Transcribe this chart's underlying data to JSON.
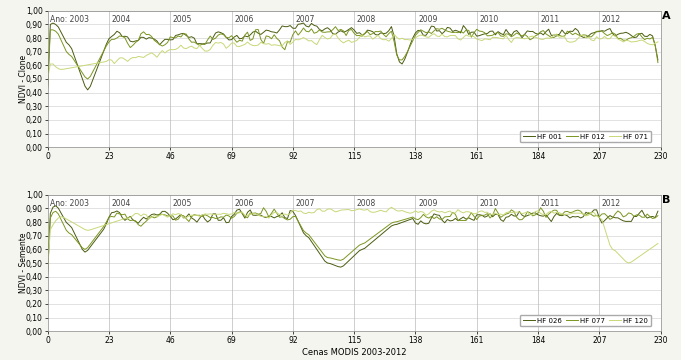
{
  "title_A": "A",
  "title_B": "B",
  "anno_A": "Ano: 2003",
  "xlabel": "Cenas MODIS 2003-2012",
  "ylabel_A": "NDVI - Clone",
  "ylabel_B": "NDVI - Semente",
  "xlim": [
    0,
    230
  ],
  "ylim": [
    0.0,
    1.0
  ],
  "xticks": [
    0,
    23,
    46,
    69,
    92,
    115,
    138,
    161,
    184,
    207,
    230
  ],
  "yticks": [
    0.0,
    0.1,
    0.2,
    0.3,
    0.4,
    0.5,
    0.6,
    0.7,
    0.8,
    0.9,
    1.0
  ],
  "year_labels": [
    "Ano: 2003",
    "2004",
    "2005",
    "2006",
    "2007",
    "2008",
    "2009",
    "2010",
    "2011",
    "2012"
  ],
  "year_x": [
    1,
    24,
    47,
    70,
    93,
    116,
    139,
    162,
    185,
    208
  ],
  "year_dividers": [
    23,
    46,
    69,
    92,
    115,
    138,
    161,
    184,
    207
  ],
  "legend_A": [
    "HF 001",
    "HF 012",
    "HF 071"
  ],
  "legend_B": [
    "HF 026",
    "HF 077",
    "HF 120"
  ],
  "color_1": "#4a5c10",
  "color_2": "#7a9620",
  "color_3": "#c8d878",
  "bg_color": "#f5f5f0",
  "plot_bg": "#ffffff",
  "grid_color": "#cccccc",
  "year_div_color": "#bbbbbb",
  "linewidth": 0.7,
  "fontsize_ticks": 5.5,
  "fontsize_ylabel": 5.5,
  "fontsize_xlabel": 6.0,
  "fontsize_year": 5.5,
  "fontsize_legend": 5.0,
  "fontsize_letter": 8
}
